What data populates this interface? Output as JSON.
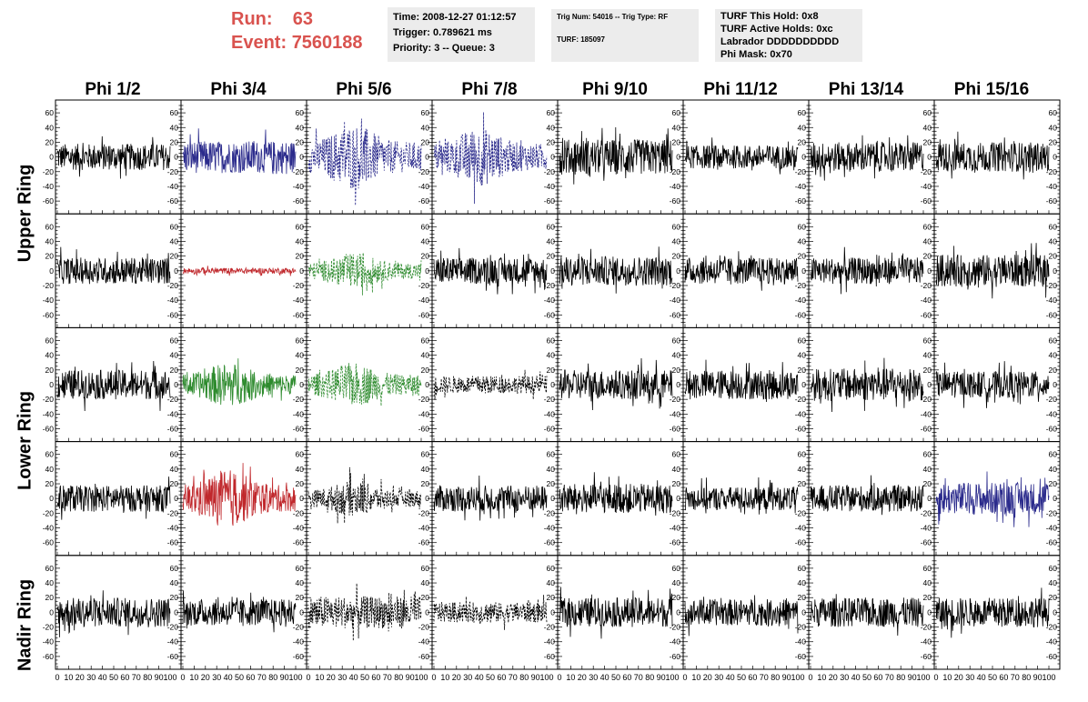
{
  "header": {
    "run_label": "Run:",
    "run_value": "63",
    "event_label": "Event:",
    "event_value": "7560188"
  },
  "info_box_1": {
    "time": "Time: 2008-12-27 01:12:57",
    "trigger": "Trigger: 0.789621 ms",
    "priority": "Priority: 3 -- Queue: 3"
  },
  "info_box_2": {
    "trig": "Trig Num: 54016 -- Trig Type: RF",
    "turf": "TURF: 185097"
  },
  "info_box_3": {
    "this_hold": "TURF This Hold: 0x8",
    "active_holds": "TURF Active Holds: 0xc",
    "labrador": "Labrador DDDDDDDDDD",
    "phi_mask": "Phi Mask: 0x70"
  },
  "columns": [
    "Phi 1/2",
    "Phi 3/4",
    "Phi 5/6",
    "Phi 7/8",
    "Phi 9/10",
    "Phi 11/12",
    "Phi 13/14",
    "Phi 15/16"
  ],
  "row_labels": {
    "upper": "Upper Ring",
    "lower": "Lower Ring",
    "nadir": "Nadir Ring"
  },
  "colors": {
    "black": "#000000",
    "blue": "#2b2b8c",
    "red": "#c0282c",
    "green": "#2e8b2e",
    "header_red": "#d9534f",
    "box_bg": "#ececec"
  },
  "chart_data": {
    "type": "line",
    "ylim": [
      -70,
      70
    ],
    "xlim": [
      0,
      100
    ],
    "y_ticks": [
      60,
      40,
      20,
      0,
      -20,
      -40,
      -60
    ],
    "y_tick_labels": [
      "60",
      "40",
      "20",
      "0",
      "-20",
      "-40",
      "-60"
    ],
    "x_ticks": [
      0,
      10,
      20,
      30,
      40,
      50,
      60,
      70,
      80,
      90,
      100
    ],
    "x_tick_labels": [
      "0",
      "10",
      "20",
      "30",
      "40",
      "50",
      "60",
      "70",
      "80",
      "90",
      "100"
    ],
    "panels": [
      {
        "row": 0,
        "col": 0,
        "color": "black",
        "style": "solid",
        "amp": 18
      },
      {
        "row": 0,
        "col": 1,
        "color": "blue",
        "style": "solid",
        "amp": 22
      },
      {
        "row": 0,
        "col": 2,
        "color": "blue",
        "style": "dashed",
        "amp": 45
      },
      {
        "row": 0,
        "col": 3,
        "color": "blue",
        "style": "dashed",
        "amp": 40
      },
      {
        "row": 0,
        "col": 4,
        "color": "black",
        "style": "solid",
        "amp": 24
      },
      {
        "row": 0,
        "col": 5,
        "color": "black",
        "style": "solid",
        "amp": 16
      },
      {
        "row": 0,
        "col": 6,
        "color": "black",
        "style": "solid",
        "amp": 20
      },
      {
        "row": 0,
        "col": 7,
        "color": "black",
        "style": "solid",
        "amp": 20
      },
      {
        "row": 1,
        "col": 0,
        "color": "black",
        "style": "solid",
        "amp": 18
      },
      {
        "row": 1,
        "col": 1,
        "color": "red",
        "style": "solid",
        "amp": 4
      },
      {
        "row": 1,
        "col": 2,
        "color": "green",
        "style": "dashed",
        "amp": 24
      },
      {
        "row": 1,
        "col": 3,
        "color": "black",
        "style": "solid",
        "amp": 18
      },
      {
        "row": 1,
        "col": 4,
        "color": "black",
        "style": "solid",
        "amp": 20
      },
      {
        "row": 1,
        "col": 5,
        "color": "black",
        "style": "solid",
        "amp": 18
      },
      {
        "row": 1,
        "col": 6,
        "color": "black",
        "style": "solid",
        "amp": 18
      },
      {
        "row": 1,
        "col": 7,
        "color": "black",
        "style": "solid",
        "amp": 22
      },
      {
        "row": 2,
        "col": 0,
        "color": "black",
        "style": "solid",
        "amp": 20
      },
      {
        "row": 2,
        "col": 1,
        "color": "green",
        "style": "solid",
        "amp": 30
      },
      {
        "row": 2,
        "col": 2,
        "color": "green",
        "style": "dashed",
        "amp": 30
      },
      {
        "row": 2,
        "col": 3,
        "color": "black",
        "style": "dashed",
        "amp": 12
      },
      {
        "row": 2,
        "col": 4,
        "color": "black",
        "style": "solid",
        "amp": 20
      },
      {
        "row": 2,
        "col": 5,
        "color": "black",
        "style": "solid",
        "amp": 20
      },
      {
        "row": 2,
        "col": 6,
        "color": "black",
        "style": "solid",
        "amp": 22
      },
      {
        "row": 2,
        "col": 7,
        "color": "black",
        "style": "solid",
        "amp": 18
      },
      {
        "row": 3,
        "col": 0,
        "color": "black",
        "style": "solid",
        "amp": 18
      },
      {
        "row": 3,
        "col": 1,
        "color": "red",
        "style": "solid",
        "amp": 40
      },
      {
        "row": 3,
        "col": 2,
        "color": "black",
        "style": "dashed",
        "amp": 24
      },
      {
        "row": 3,
        "col": 3,
        "color": "black",
        "style": "solid",
        "amp": 18
      },
      {
        "row": 3,
        "col": 4,
        "color": "black",
        "style": "solid",
        "amp": 20
      },
      {
        "row": 3,
        "col": 5,
        "color": "black",
        "style": "solid",
        "amp": 16
      },
      {
        "row": 3,
        "col": 6,
        "color": "black",
        "style": "solid",
        "amp": 18
      },
      {
        "row": 3,
        "col": 7,
        "color": "blue",
        "style": "solid",
        "amp": 22
      },
      {
        "row": 4,
        "col": 0,
        "color": "black",
        "style": "solid",
        "amp": 20
      },
      {
        "row": 4,
        "col": 1,
        "color": "black",
        "style": "solid",
        "amp": 18
      },
      {
        "row": 4,
        "col": 2,
        "color": "black",
        "style": "dashed",
        "amp": 22
      },
      {
        "row": 4,
        "col": 3,
        "color": "black",
        "style": "dashed",
        "amp": 14
      },
      {
        "row": 4,
        "col": 4,
        "color": "black",
        "style": "solid",
        "amp": 20
      },
      {
        "row": 4,
        "col": 5,
        "color": "black",
        "style": "solid",
        "amp": 18
      },
      {
        "row": 4,
        "col": 6,
        "color": "black",
        "style": "solid",
        "amp": 20
      },
      {
        "row": 4,
        "col": 7,
        "color": "black",
        "style": "solid",
        "amp": 20
      }
    ]
  }
}
